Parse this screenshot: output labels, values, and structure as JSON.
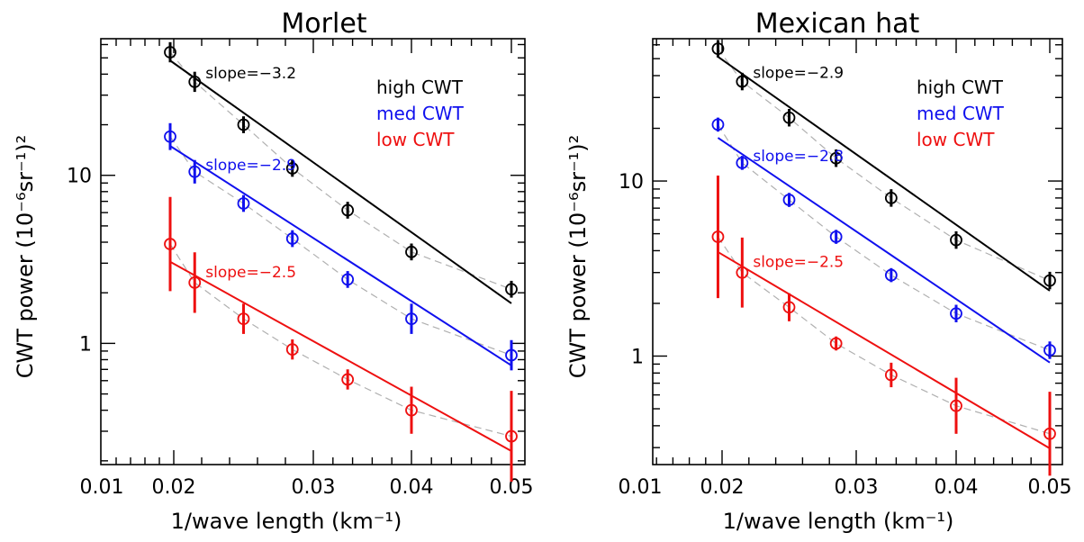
{
  "colors": {
    "high": "#000000",
    "med": "#1010ee",
    "low": "#ee1010",
    "dashed": "#b0b0b0"
  },
  "chart_data": [
    {
      "type": "scatter",
      "title": "Morlet",
      "xlabel": "1/wave length (km⁻¹)",
      "ylabel": "CWT power (10⁻⁶sr⁻¹)²",
      "xscale": "log",
      "yscale": "log",
      "xlim": [
        0.0185,
        0.0515
      ],
      "ylim": [
        0.19,
        65
      ],
      "xticks": [
        0.01,
        0.02,
        0.03,
        0.04,
        0.05
      ],
      "xticklabels": [
        "0.01",
        "0.02",
        "0.03",
        "0.04",
        "0.05"
      ],
      "yticks": [
        1,
        10
      ],
      "yticklabels": [
        "1",
        "10"
      ],
      "legend": {
        "position": "top-right",
        "entries": [
          "high CWT",
          "med CWT",
          "low CWT"
        ]
      },
      "x": [
        0.0195,
        0.0215,
        0.025,
        0.0285,
        0.0335,
        0.04,
        0.05
      ],
      "series": [
        {
          "name": "high CWT",
          "color_key": "high",
          "y": [
            54,
            36,
            20,
            11,
            6.2,
            3.5,
            2.1
          ],
          "err": [
            0.06,
            0.06,
            0.05,
            0.05,
            0.05,
            0.05,
            0.05
          ],
          "slope_label": "slope=−3.2"
        },
        {
          "name": "med CWT",
          "color_key": "med",
          "y": [
            17,
            10.5,
            6.8,
            4.2,
            2.4,
            1.4,
            0.85
          ],
          "err": [
            0.08,
            0.07,
            0.05,
            0.05,
            0.05,
            0.09,
            0.09
          ],
          "slope_label": "slope=−2.9"
        },
        {
          "name": "low CWT",
          "color_key": "low",
          "y": [
            3.9,
            2.3,
            1.4,
            0.92,
            0.61,
            0.4,
            0.28
          ],
          "err": [
            0.28,
            0.18,
            0.09,
            0.06,
            0.06,
            0.14,
            0.27
          ],
          "slope_label": "slope=−2.5"
        }
      ]
    },
    {
      "type": "scatter",
      "title": "Mexican hat",
      "xlabel": "1/wave length (km⁻¹)",
      "ylabel": "CWT power (10⁻⁶sr⁻¹)²",
      "xscale": "log",
      "yscale": "log",
      "xlim": [
        0.0185,
        0.0515
      ],
      "ylim": [
        0.24,
        65
      ],
      "xticks": [
        0.01,
        0.02,
        0.03,
        0.04,
        0.05
      ],
      "xticklabels": [
        "0.01",
        "0.02",
        "0.03",
        "0.04",
        "0.05"
      ],
      "yticks": [
        1,
        10
      ],
      "yticklabels": [
        "1",
        "10"
      ],
      "legend": {
        "position": "top-right",
        "entries": [
          "high CWT",
          "med CWT",
          "low CWT"
        ]
      },
      "x": [
        0.0195,
        0.0215,
        0.025,
        0.0285,
        0.0335,
        0.04,
        0.05
      ],
      "series": [
        {
          "name": "high CWT",
          "color_key": "high",
          "y": [
            57,
            37,
            23,
            13.5,
            8.0,
            4.6,
            2.7
          ],
          "err": [
            0.05,
            0.05,
            0.05,
            0.05,
            0.05,
            0.05,
            0.05
          ],
          "slope_label": "slope=−2.9"
        },
        {
          "name": "med CWT",
          "color_key": "med",
          "y": [
            21,
            12.7,
            7.8,
            4.8,
            2.9,
            1.75,
            1.08
          ],
          "err": [
            0.04,
            0.04,
            0.04,
            0.04,
            0.04,
            0.05,
            0.05
          ],
          "slope_label": "slope=−2.8"
        },
        {
          "name": "low CWT",
          "color_key": "low",
          "y": [
            4.8,
            3.0,
            1.9,
            1.18,
            0.78,
            0.52,
            0.36
          ],
          "err": [
            0.35,
            0.2,
            0.08,
            0.04,
            0.07,
            0.16,
            0.24
          ],
          "slope_label": "slope=−2.5"
        }
      ]
    }
  ]
}
